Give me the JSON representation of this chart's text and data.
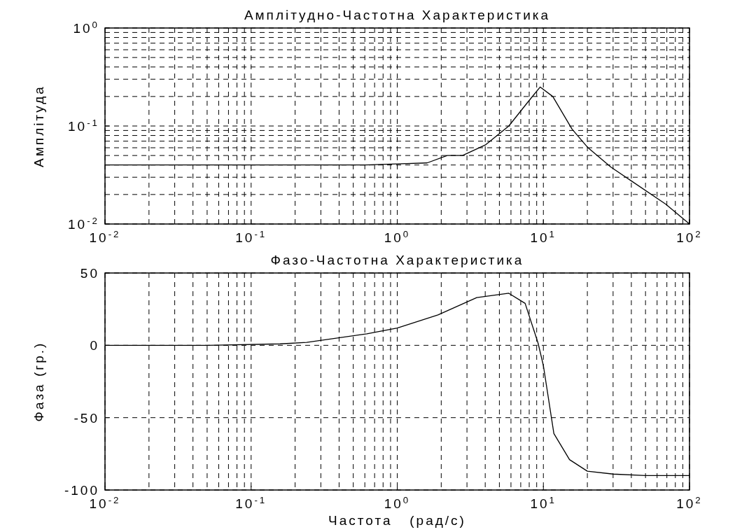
{
  "chart_data": [
    {
      "type": "line",
      "title": "Амплітудно-Частотна Характеристика",
      "ylabel": "Амплітуда",
      "log": "xy",
      "grid": true,
      "line_style": "solid",
      "xlim": [
        0.01,
        100
      ],
      "xticks": [
        {
          "value": 0.01,
          "label": "10$^{-2}$"
        },
        {
          "value": 0.1,
          "label": "10$^{-1}$"
        },
        {
          "value": 1,
          "label": "10$^{0}$"
        },
        {
          "value": 10,
          "label": "10$^{1}$"
        },
        {
          "value": 100,
          "label": "10$^{2}$"
        }
      ],
      "ylim": [
        0.01,
        1
      ],
      "yticks": [
        {
          "value": 0.01,
          "label": "10$^{-2}$"
        },
        {
          "value": 0.1,
          "label": "10$^{-1}$"
        },
        {
          "value": 1,
          "label": "10$^{0}$"
        }
      ],
      "series": [
        {
          "color": "#000000",
          "x": [
            0.01,
            0.1,
            0.61,
            1,
            1.6,
            2.2,
            2.8,
            4.0,
            5.8,
            7.7,
            9.5,
            11.6,
            15.7,
            20.2,
            29,
            39.3,
            68.6,
            100
          ],
          "values": [
            0.04,
            0.04,
            0.04,
            0.041,
            0.042,
            0.05,
            0.05,
            0.064,
            0.1,
            0.17,
            0.25,
            0.2,
            0.093,
            0.06,
            0.038,
            0.028,
            0.016,
            0.01
          ]
        }
      ]
    },
    {
      "type": "line",
      "title": "Фазо-Частотна Характеристика",
      "xlabel": "Частота   (рад/с)",
      "ylabel": "Фаза  (гр.)",
      "log": "x",
      "grid": true,
      "line_style": "solid",
      "xlim": [
        0.01,
        100
      ],
      "xticks": [
        {
          "value": 0.01,
          "label": "10$^{-2}$"
        },
        {
          "value": 0.1,
          "label": "10$^{-1}$"
        },
        {
          "value": 1,
          "label": "10$^{0}$"
        },
        {
          "value": 10,
          "label": "10$^{1}$"
        },
        {
          "value": 100,
          "label": "10$^{2}$"
        }
      ],
      "ylim": [
        -100,
        50
      ],
      "yticks": [
        -100,
        -50,
        0,
        50
      ],
      "series": [
        {
          "color": "#000000",
          "x": [
            0.01,
            0.05,
            0.158,
            0.24,
            0.62,
            1,
            1.9,
            3.5,
            5.8,
            7.5,
            9.2,
            10,
            11.8,
            15.1,
            20,
            30,
            50,
            100
          ],
          "values": [
            0,
            0,
            1,
            2,
            8,
            12,
            21,
            33,
            36,
            29,
            1.5,
            -14,
            -61,
            -79,
            -87,
            -89,
            -90,
            -90
          ]
        }
      ]
    }
  ]
}
